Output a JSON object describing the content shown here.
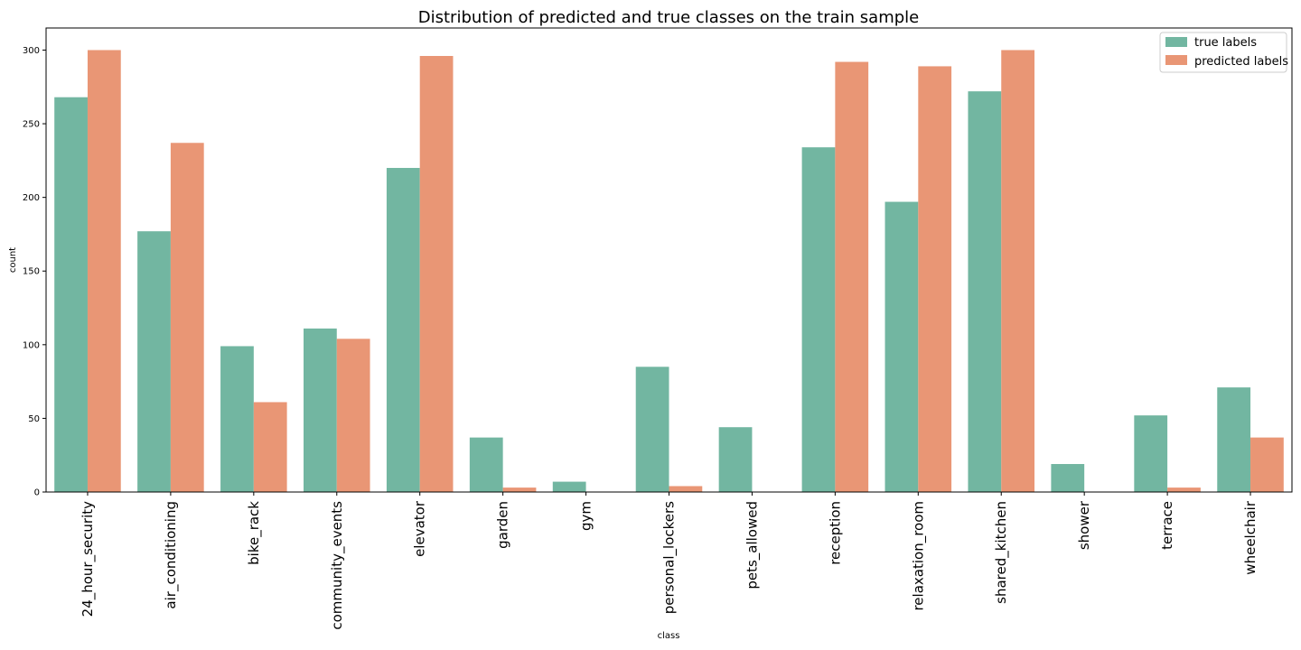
{
  "chart_data": {
    "type": "bar",
    "title": "Distribution of predicted and true classes on the train sample",
    "xlabel": "class",
    "ylabel": "count",
    "ylim": [
      0,
      315
    ],
    "yticks": [
      0,
      50,
      100,
      150,
      200,
      250,
      300
    ],
    "grid": false,
    "legend_position": "top-right",
    "categories": [
      "24_hour_security",
      "air_conditioning",
      "bike_rack",
      "community_events",
      "elevator",
      "garden",
      "gym",
      "personal_lockers",
      "pets_allowed",
      "reception",
      "relaxation_room",
      "shared_kitchen",
      "shower",
      "terrace",
      "wheelchair"
    ],
    "series": [
      {
        "name": "true labels",
        "color": "#72b6a1",
        "values": [
          268,
          177,
          99,
          111,
          220,
          37,
          7,
          85,
          44,
          234,
          197,
          272,
          19,
          52,
          71
        ]
      },
      {
        "name": "predicted labels",
        "color": "#e99675",
        "values": [
          300,
          237,
          61,
          104,
          296,
          3,
          0,
          4,
          0,
          292,
          289,
          300,
          0,
          3,
          37
        ]
      }
    ]
  }
}
